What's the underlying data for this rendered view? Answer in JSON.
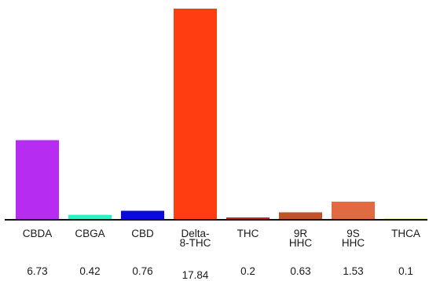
{
  "chart_data": {
    "type": "bar",
    "categories": [
      "CBDA",
      "CBGA",
      "CBD",
      "Delta-8-THC",
      "THC",
      "9R HHC",
      "9S HHC",
      "THCA"
    ],
    "category_lines": [
      [
        "CBDA"
      ],
      [
        "CBGA"
      ],
      [
        "CBD"
      ],
      [
        "Delta-",
        "8-THC"
      ],
      [
        "THC"
      ],
      [
        "9R",
        "HHC"
      ],
      [
        "9S",
        "HHC"
      ],
      [
        "THCA"
      ]
    ],
    "values": [
      6.73,
      0.42,
      0.76,
      17.84,
      0.2,
      0.63,
      1.53,
      0.1
    ],
    "value_labels": [
      "6.73",
      "0.42",
      "0.76",
      "17.84",
      "0.2",
      "0.63",
      "1.53",
      "0.1"
    ],
    "colors": [
      "#b62cf0",
      "#30f0c8",
      "#0a0adc",
      "#ff3d10",
      "#c42828",
      "#c45228",
      "#e26a40",
      "#eedc50"
    ],
    "title": "",
    "xlabel": "",
    "ylabel": "",
    "ylim": [
      0,
      17.84
    ],
    "grid": false,
    "legend": "none"
  }
}
